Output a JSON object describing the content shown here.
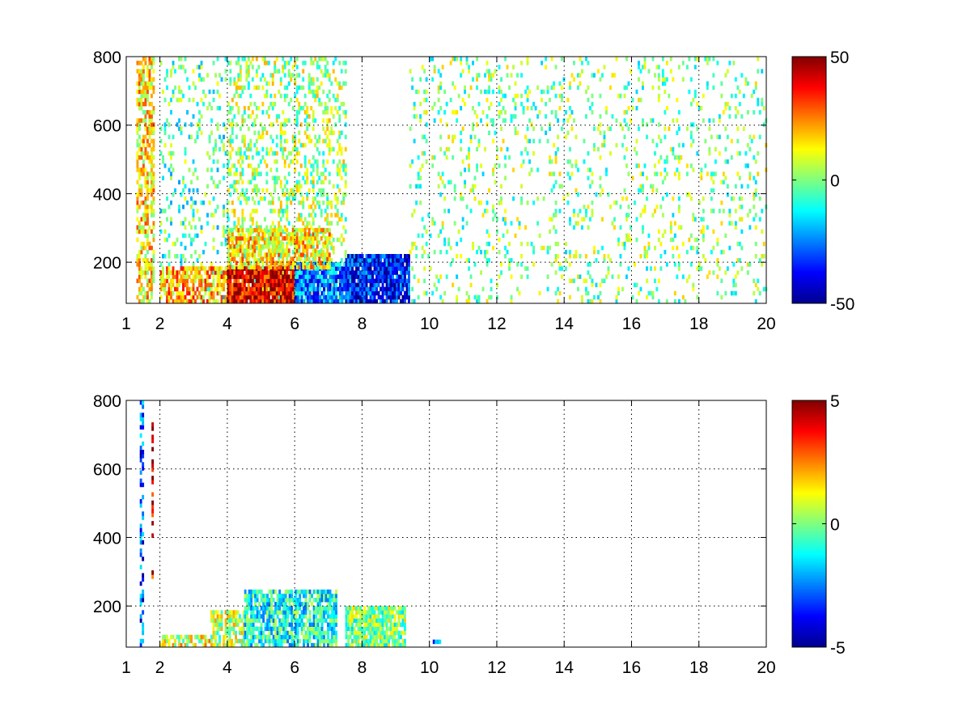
{
  "chart_data": [
    {
      "type": "heatmap",
      "title": "",
      "xlabel": "",
      "ylabel": "",
      "xlim": [
        1,
        20
      ],
      "ylim": [
        80,
        800
      ],
      "x_ticks": [
        1,
        2,
        4,
        6,
        8,
        10,
        12,
        14,
        16,
        18,
        20
      ],
      "y_ticks": [
        200,
        400,
        600,
        800
      ],
      "grid": true,
      "colormap": "jet",
      "clim": [
        -50,
        50
      ],
      "colorbar_ticks": [
        50,
        0,
        -50
      ],
      "colorbar_position": "right",
      "data_description_regions": [
        {
          "x": [
            1.3,
            1.8
          ],
          "y": [
            80,
            800
          ],
          "value": 15,
          "density": 0.6
        },
        {
          "x": [
            2.0,
            4.0
          ],
          "y": [
            80,
            800
          ],
          "value": -5,
          "density": 0.15
        },
        {
          "x": [
            4.0,
            7.5
          ],
          "y": [
            80,
            800
          ],
          "value": 3,
          "density": 0.3
        },
        {
          "x": [
            2.0,
            4.0
          ],
          "y": [
            80,
            180
          ],
          "value": 20,
          "density": 0.7
        },
        {
          "x": [
            4.0,
            6.0
          ],
          "y": [
            80,
            180
          ],
          "value": 40,
          "density": 0.95
        },
        {
          "x": [
            6.0,
            7.5
          ],
          "y": [
            80,
            200
          ],
          "value": -25,
          "density": 0.9
        },
        {
          "x": [
            7.5,
            9.4
          ],
          "y": [
            80,
            220
          ],
          "value": -35,
          "density": 0.9
        },
        {
          "x": [
            4.0,
            7.0
          ],
          "y": [
            180,
            300
          ],
          "value": 15,
          "density": 0.7
        },
        {
          "x": [
            9.4,
            20.0
          ],
          "y": [
            80,
            800
          ],
          "value": 0,
          "density": 0.12
        }
      ]
    },
    {
      "type": "heatmap",
      "title": "",
      "xlabel": "",
      "ylabel": "",
      "xlim": [
        1,
        20
      ],
      "ylim": [
        80,
        800
      ],
      "x_ticks": [
        1,
        2,
        4,
        6,
        8,
        10,
        12,
        14,
        16,
        18,
        20
      ],
      "y_ticks": [
        200,
        400,
        600,
        800
      ],
      "grid": true,
      "colormap": "jet",
      "clim": [
        -5,
        5
      ],
      "colorbar_ticks": [
        5,
        0,
        -5
      ],
      "colorbar_position": "right",
      "data_description_regions": [
        {
          "x": [
            1.4,
            1.5
          ],
          "y": [
            80,
            800
          ],
          "value": -3,
          "density": 0.5
        },
        {
          "x": [
            1.75,
            1.8
          ],
          "y": [
            280,
            770
          ],
          "value": 4,
          "density": 0.5
        },
        {
          "x": [
            2.0,
            3.5
          ],
          "y": [
            80,
            110
          ],
          "value": 1,
          "density": 0.6
        },
        {
          "x": [
            3.5,
            4.5
          ],
          "y": [
            80,
            180
          ],
          "value": 0.5,
          "density": 0.7
        },
        {
          "x": [
            4.5,
            7.2
          ],
          "y": [
            80,
            240
          ],
          "value": -1,
          "density": 0.8
        },
        {
          "x": [
            7.5,
            9.3
          ],
          "y": [
            80,
            190
          ],
          "value": 0,
          "density": 0.85
        },
        {
          "x": [
            10.1,
            10.3
          ],
          "y": [
            90,
            100
          ],
          "value": -2,
          "density": 1.0
        }
      ]
    }
  ]
}
